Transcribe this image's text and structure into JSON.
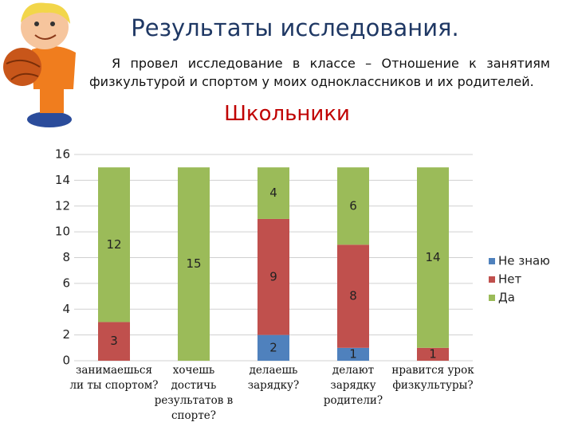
{
  "title": "Результаты исследования.",
  "text": "Я провел исследование в классе – Отношение к занятиям физкультурой и спортом у моих одноклассников и их родителей.",
  "chart_data": {
    "type": "stacked_bar",
    "title": "Школьники",
    "categories": [
      "занимаешься ли ты спортом?",
      "хочешь достичь результатов в спорте?",
      "делаешь зарядку?",
      "делают зарядку родители?",
      "нравится урок физкультуры?"
    ],
    "series": [
      {
        "name": "Не знаю",
        "color": "#4f81bd",
        "values": [
          0,
          0,
          2,
          1,
          0
        ]
      },
      {
        "name": "Нет",
        "color": "#c0504d",
        "values": [
          3,
          0,
          9,
          8,
          1
        ]
      },
      {
        "name": "Да",
        "color": "#9bbb59",
        "values": [
          12,
          15,
          4,
          6,
          14
        ]
      }
    ],
    "ylim": [
      0,
      16
    ],
    "yticks": [
      0,
      2,
      4,
      6,
      8,
      10,
      12,
      14,
      16
    ],
    "grid": true,
    "legend": "right"
  }
}
